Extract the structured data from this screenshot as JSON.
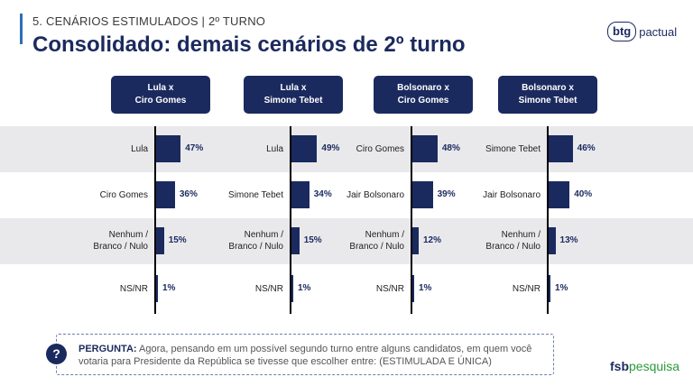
{
  "header": {
    "section": "5. CENÁRIOS ESTIMULADOS | 2º TURNO",
    "title": "Consolidado: demais cenários de 2º turno",
    "brand_btg": "btg",
    "brand_pactual": "pactual"
  },
  "chart_data": [
    {
      "type": "bar",
      "header_line1": "Lula x",
      "header_line2": "Ciro Gomes",
      "categories": [
        "Lula",
        "Ciro Gomes",
        "Nenhum / Branco / Nulo",
        "NS/NR"
      ],
      "label_lines": [
        [
          "Lula"
        ],
        [
          "Ciro Gomes"
        ],
        [
          "Nenhum /",
          "Branco / Nulo"
        ],
        [
          "NS/NR"
        ]
      ],
      "values": [
        47,
        36,
        15,
        1
      ],
      "value_labels": [
        "47%",
        "36%",
        "15%",
        "1%"
      ]
    },
    {
      "type": "bar",
      "header_line1": "Lula x",
      "header_line2": "Simone Tebet",
      "categories": [
        "Lula",
        "Simone Tebet",
        "Nenhum / Branco / Nulo",
        "NS/NR"
      ],
      "label_lines": [
        [
          "Lula"
        ],
        [
          "Simone Tebet"
        ],
        [
          "Nenhum /",
          "Branco / Nulo"
        ],
        [
          "NS/NR"
        ]
      ],
      "values": [
        49,
        34,
        15,
        1
      ],
      "value_labels": [
        "49%",
        "34%",
        "15%",
        "1%"
      ]
    },
    {
      "type": "bar",
      "header_line1": "Bolsonaro x",
      "header_line2": "Ciro Gomes",
      "categories": [
        "Ciro Gomes",
        "Jair Bolsonaro",
        "Nenhum / Branco / Nulo",
        "NS/NR"
      ],
      "label_lines": [
        [
          "Ciro Gomes"
        ],
        [
          "Jair Bolsonaro"
        ],
        [
          "Nenhum /",
          "Branco / Nulo"
        ],
        [
          "NS/NR"
        ]
      ],
      "values": [
        48,
        39,
        12,
        1
      ],
      "value_labels": [
        "48%",
        "39%",
        "12%",
        "1%"
      ]
    },
    {
      "type": "bar",
      "header_line1": "Bolsonaro x",
      "header_line2": "Simone Tebet",
      "categories": [
        "Simone Tebet",
        "Jair Bolsonaro",
        "Nenhum / Branco / Nulo",
        "NS/NR"
      ],
      "label_lines": [
        [
          "Simone Tebet"
        ],
        [
          "Jair Bolsonaro"
        ],
        [
          "Nenhum /",
          "Branco / Nulo"
        ],
        [
          "NS/NR"
        ]
      ],
      "values": [
        46,
        40,
        13,
        1
      ],
      "value_labels": [
        "46%",
        "40%",
        "13%",
        "1%"
      ]
    }
  ],
  "question": {
    "icon": "?",
    "label": "PERGUNTA:",
    "text": " Agora, pensando em um possível segundo turno entre alguns candidatos, em quem você votaria para Presidente da República se tivesse que escolher entre: (ESTIMULADA E ÚNICA)"
  },
  "footer": {
    "fsb": "fsb",
    "pesquisa": "pesquisa"
  },
  "colors": {
    "bar": "#1b2a5e",
    "band": "#e9e9ec",
    "accent": "#2b6fb5",
    "brand_green": "#2b9a3a"
  }
}
